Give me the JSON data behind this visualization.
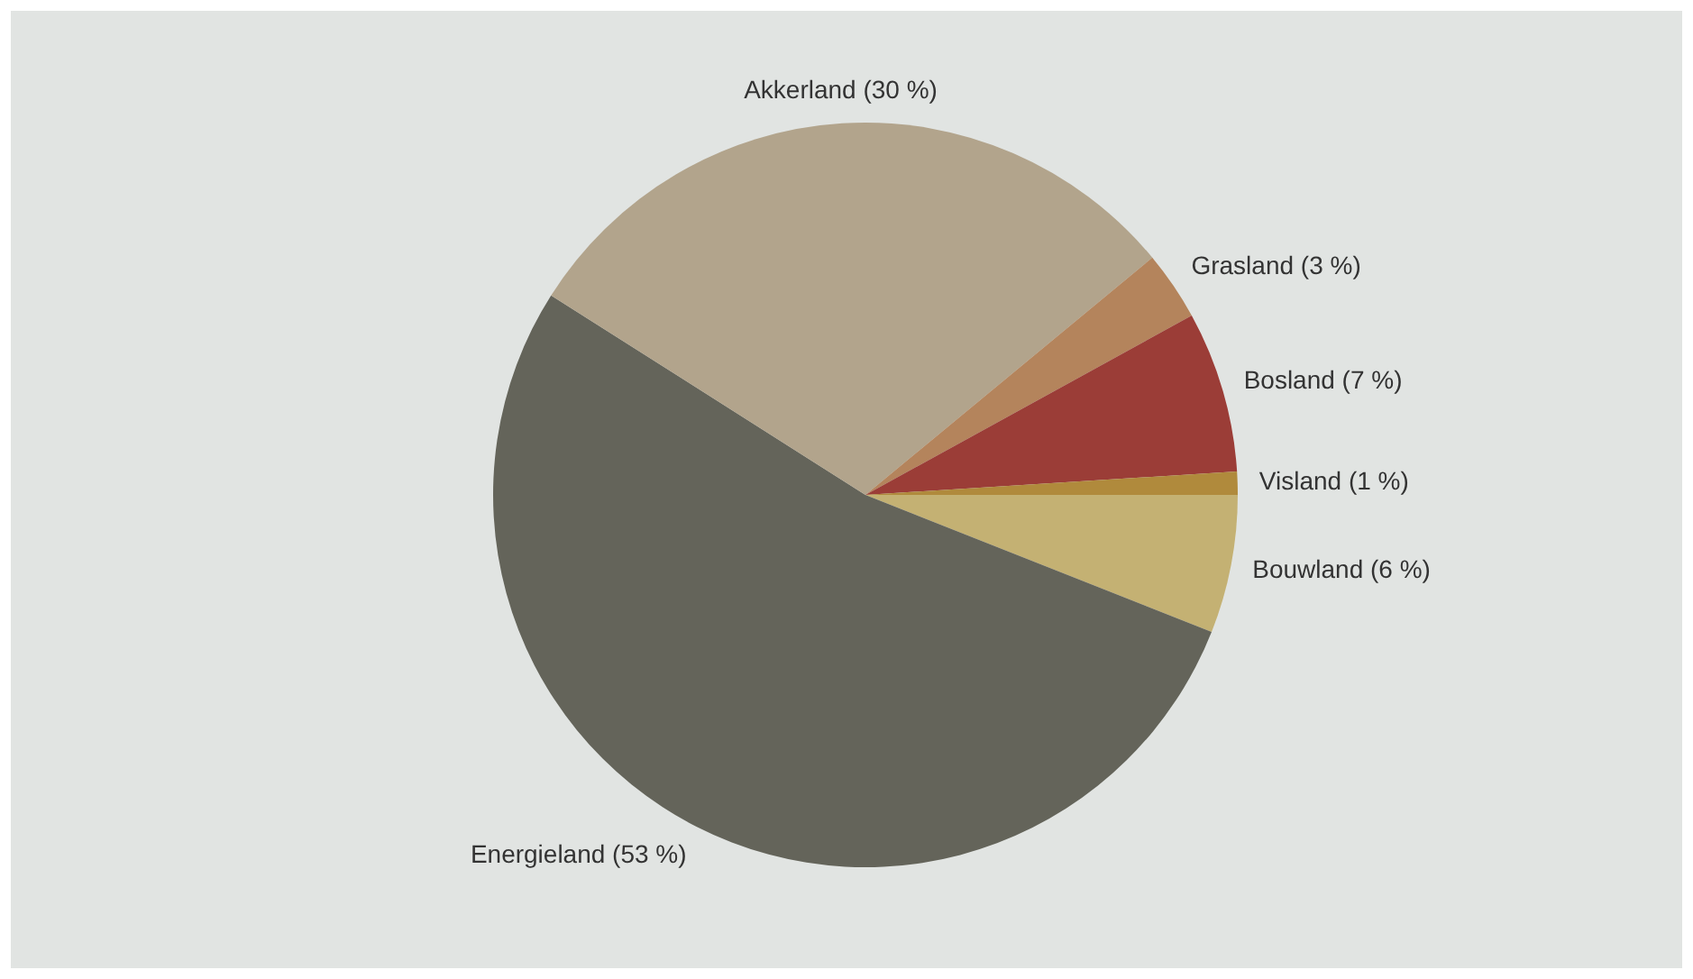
{
  "chart_data": {
    "type": "pie",
    "categories": [
      "Bouwland (6 %)",
      "Energieland (53 %)",
      "Akkerland (30 %)",
      "Grasland (3 %)",
      "Bosland (7 %)",
      "Visland (1 %)"
    ],
    "values": [
      6,
      53,
      30,
      3,
      7,
      1
    ],
    "colors": [
      "#c4b173",
      "#64645a",
      "#b2a48c",
      "#b4845c",
      "#9b3d37",
      "#b08a3c"
    ],
    "legend": false
  }
}
